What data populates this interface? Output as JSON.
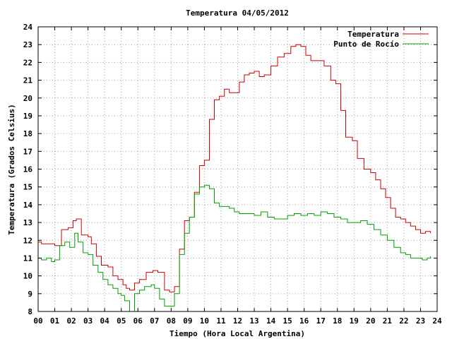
{
  "chart_data": {
    "type": "line",
    "title": "Temperatura 04/05/2012",
    "xlabel": "Tiempo (Hora Local Argentina)",
    "ylabel": "Temperatura (Grados Celsius)",
    "xlim": [
      0,
      24
    ],
    "ylim": [
      8,
      24
    ],
    "x_ticks": [
      "00",
      "01",
      "02",
      "03",
      "04",
      "05",
      "06",
      "07",
      "08",
      "09",
      "10",
      "11",
      "12",
      "13",
      "14",
      "15",
      "16",
      "17",
      "18",
      "19",
      "20",
      "21",
      "22",
      "23",
      "24"
    ],
    "y_ticks": [
      8,
      9,
      10,
      11,
      12,
      13,
      14,
      15,
      16,
      17,
      18,
      19,
      20,
      21,
      22,
      23,
      24
    ],
    "grid": true,
    "legend_position": "top-right",
    "series": [
      {
        "name": "Temperatura",
        "color": "#cc0000",
        "x": [
          0,
          0.2,
          0.5,
          0.8,
          1.0,
          1.4,
          1.8,
          2.1,
          2.3,
          2.6,
          3.0,
          3.2,
          3.5,
          3.8,
          4.2,
          4.5,
          4.8,
          5.1,
          5.3,
          5.5,
          5.8,
          6.1,
          6.5,
          6.9,
          7.2,
          7.6,
          7.9,
          8.2,
          8.5,
          8.8,
          9.1,
          9.4,
          9.7,
          10.0,
          10.3,
          10.6,
          10.9,
          11.2,
          11.5,
          11.8,
          12.1,
          12.4,
          12.7,
          13.0,
          13.3,
          13.6,
          14.0,
          14.4,
          14.8,
          15.2,
          15.5,
          15.8,
          16.1,
          16.4,
          16.8,
          17.2,
          17.6,
          17.9,
          18.2,
          18.5,
          18.9,
          19.2,
          19.6,
          20.0,
          20.3,
          20.6,
          20.9,
          21.2,
          21.5,
          21.8,
          22.1,
          22.4,
          22.7,
          23.0,
          23.3,
          23.6
        ],
        "y": [
          11.9,
          11.8,
          11.8,
          11.8,
          11.7,
          12.6,
          12.7,
          13.1,
          13.2,
          12.3,
          12.2,
          11.8,
          11.1,
          10.6,
          10.5,
          10.0,
          9.8,
          9.5,
          9.3,
          9.2,
          9.6,
          9.8,
          10.2,
          10.3,
          10.2,
          9.2,
          9.1,
          9.4,
          11.5,
          13.1,
          13.3,
          14.7,
          16.2,
          16.5,
          18.8,
          19.9,
          20.1,
          20.5,
          20.3,
          20.3,
          20.9,
          21.3,
          21.4,
          21.5,
          21.2,
          21.3,
          21.8,
          22.3,
          22.5,
          22.9,
          23.0,
          22.9,
          22.4,
          22.1,
          22.1,
          21.8,
          21.0,
          20.8,
          19.3,
          17.8,
          17.6,
          16.6,
          16.0,
          15.8,
          15.4,
          14.9,
          14.4,
          13.8,
          13.3,
          13.2,
          13.0,
          12.8,
          12.6,
          12.4,
          12.5,
          12.4
        ]
      },
      {
        "name": "Punto de Rocío",
        "color": "#00a000",
        "x": [
          0,
          0.2,
          0.5,
          0.8,
          1.0,
          1.3,
          1.6,
          1.9,
          2.2,
          2.4,
          2.7,
          3.0,
          3.3,
          3.6,
          3.9,
          4.2,
          4.5,
          4.8,
          5.0,
          5.2,
          5.5,
          5.8,
          6.1,
          6.4,
          6.8,
          7.0,
          7.3,
          7.6,
          7.9,
          8.2,
          8.5,
          8.8,
          9.1,
          9.4,
          9.7,
          10.0,
          10.3,
          10.6,
          10.9,
          11.2,
          11.5,
          11.8,
          12.1,
          12.4,
          12.7,
          13.0,
          13.4,
          13.8,
          14.2,
          14.6,
          15.0,
          15.4,
          15.8,
          16.2,
          16.6,
          17.0,
          17.4,
          17.8,
          18.2,
          18.6,
          19.0,
          19.4,
          19.8,
          20.2,
          20.6,
          21.0,
          21.4,
          21.8,
          22.1,
          22.4,
          22.8,
          23.1,
          23.4,
          23.6
        ],
        "y": [
          11.0,
          10.9,
          11.0,
          10.8,
          10.9,
          11.7,
          11.9,
          11.6,
          12.4,
          11.9,
          11.3,
          11.2,
          10.6,
          10.2,
          9.8,
          9.5,
          9.3,
          9.0,
          8.9,
          8.6,
          8.0,
          9.0,
          9.2,
          9.4,
          9.5,
          9.3,
          8.7,
          8.3,
          8.3,
          9.0,
          11.2,
          12.4,
          13.3,
          14.6,
          15.0,
          15.1,
          14.9,
          14.1,
          13.9,
          13.9,
          13.8,
          13.6,
          13.5,
          13.5,
          13.5,
          13.4,
          13.6,
          13.3,
          13.2,
          13.2,
          13.4,
          13.5,
          13.4,
          13.5,
          13.4,
          13.6,
          13.5,
          13.3,
          13.2,
          13.0,
          13.0,
          13.1,
          12.9,
          12.6,
          12.3,
          12.0,
          11.6,
          11.3,
          11.2,
          11.0,
          11.0,
          10.9,
          11.0,
          11.1
        ]
      }
    ]
  }
}
